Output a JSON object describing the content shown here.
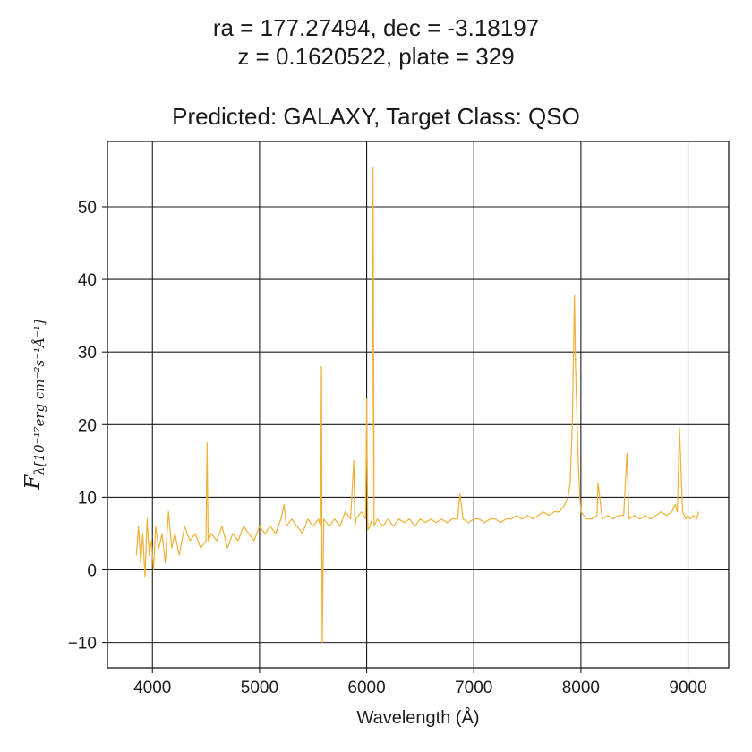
{
  "chart_data": {
    "type": "line",
    "title_line1": "ra = 177.27494, dec = -3.18197",
    "title_line2": "z = 0.1620522, plate = 329",
    "subtitle": "Predicted: GALAXY, Target Class: QSO",
    "xlabel": "Wavelength (Å)",
    "ylabel_main": "F",
    "ylabel_sub": "λ[10⁻¹⁷erg cm⁻²s⁻¹Å⁻¹]",
    "xlim": [
      3580,
      9380
    ],
    "ylim": [
      -13.5,
      59
    ],
    "x_ticks": [
      4000,
      5000,
      6000,
      7000,
      8000,
      9000
    ],
    "y_ticks": [
      -10,
      0,
      10,
      20,
      30,
      40,
      50
    ],
    "x_tick_labels": [
      "4000",
      "5000",
      "6000",
      "7000",
      "8000",
      "9000"
    ],
    "y_tick_labels": [
      "−10",
      "0",
      "10",
      "20",
      "30",
      "40",
      "50"
    ],
    "grid": true,
    "line_color": "#f0b035",
    "series": [
      {
        "x": [
          3850,
          3870,
          3890,
          3910,
          3930,
          3950,
          3970,
          3990,
          4010,
          4030,
          4060,
          4090,
          4120,
          4150,
          4180,
          4210,
          4250,
          4300,
          4350,
          4400,
          4450,
          4500,
          4510,
          4520,
          4550,
          4600,
          4650,
          4700,
          4750,
          4800,
          4850,
          4900,
          4950,
          5000,
          5050,
          5100,
          5150,
          5200,
          5230,
          5250,
          5300,
          5350,
          5400,
          5450,
          5500,
          5550,
          5570,
          5577,
          5585,
          5600,
          5650,
          5700,
          5750,
          5800,
          5850,
          5880,
          5890,
          5900,
          5950,
          5990,
          6000,
          6010,
          6030,
          6050,
          6060,
          6070,
          6100,
          6150,
          6200,
          6250,
          6300,
          6350,
          6400,
          6450,
          6500,
          6550,
          6600,
          6650,
          6700,
          6750,
          6800,
          6850,
          6870,
          6900,
          6950,
          7000,
          7050,
          7100,
          7150,
          7200,
          7250,
          7300,
          7350,
          7400,
          7450,
          7500,
          7550,
          7600,
          7650,
          7700,
          7750,
          7800,
          7850,
          7880,
          7900,
          7920,
          7940,
          7950,
          7960,
          7975,
          7990,
          8000,
          8050,
          8100,
          8150,
          8160,
          8200,
          8250,
          8300,
          8350,
          8400,
          8430,
          8450,
          8500,
          8550,
          8600,
          8650,
          8700,
          8750,
          8800,
          8850,
          8880,
          8900,
          8920,
          8950,
          8980,
          9000,
          9020,
          9050,
          9080,
          9100
        ],
        "y": [
          2,
          6,
          1,
          5,
          -1,
          7,
          2,
          4,
          0,
          6,
          3,
          5,
          1,
          8,
          3,
          5,
          2,
          6,
          4,
          5,
          3,
          4,
          17.5,
          4,
          5,
          4,
          6,
          3,
          5,
          4,
          6,
          5,
          4,
          6,
          5,
          6,
          5,
          7,
          9,
          6,
          7,
          6,
          5,
          7,
          6,
          7,
          6,
          28,
          -10,
          7,
          6,
          7,
          6,
          8,
          7,
          15,
          6,
          7,
          8,
          7,
          23.5,
          5.5,
          6,
          7,
          55.5,
          6,
          7,
          6,
          7,
          6,
          7,
          6.5,
          7,
          6,
          7,
          6.5,
          7,
          6.5,
          7,
          6.5,
          7,
          7,
          10.5,
          7,
          6.5,
          7,
          7,
          6.5,
          7,
          7,
          6.5,
          7,
          7,
          7.5,
          7,
          7.5,
          7,
          7.5,
          8,
          7.5,
          8,
          8,
          9,
          10,
          12,
          20,
          37.8,
          28,
          23,
          15,
          10,
          8,
          7,
          7,
          7.5,
          12,
          7,
          7.5,
          7,
          7.5,
          7.5,
          16,
          7,
          7.5,
          7,
          7.5,
          7,
          7.5,
          8,
          7.5,
          8,
          9,
          8,
          19.5,
          8,
          7,
          7.5,
          7,
          7.5,
          7,
          8
        ]
      }
    ]
  }
}
